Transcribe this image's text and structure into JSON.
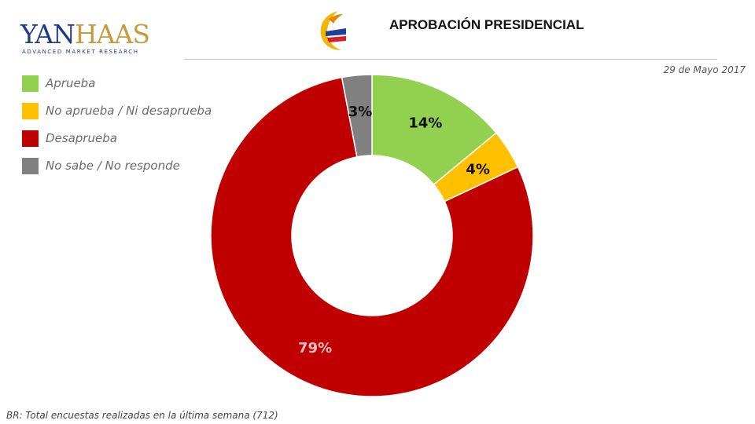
{
  "brand": {
    "logo_word_a": "YAN",
    "logo_word_b": "HAAS",
    "logo_tagline": "ADVANCED MARKET RESEARCH"
  },
  "header": {
    "title": "APROBACIÓN PRESIDENCIAL",
    "date": "29 de Mayo 2017"
  },
  "footer": {
    "note": "BR: Total encuestas realizadas en la última semana (712)"
  },
  "chart_data": {
    "type": "pie",
    "donut": true,
    "categories": [
      "Aprueba",
      "No aprueba / Ni desaprueba",
      "Desaprueba",
      "No sabe /  No responde"
    ],
    "values": [
      14,
      4,
      79,
      3
    ],
    "labels": [
      "14%",
      "4%",
      "79%",
      "3%"
    ],
    "colors": [
      "#92d050",
      "#ffc000",
      "#c00000",
      "#808080"
    ],
    "label_colors": [
      "#111111",
      "#111111",
      "#f2c0c0",
      "#111111"
    ],
    "legend_position": "top-left"
  }
}
